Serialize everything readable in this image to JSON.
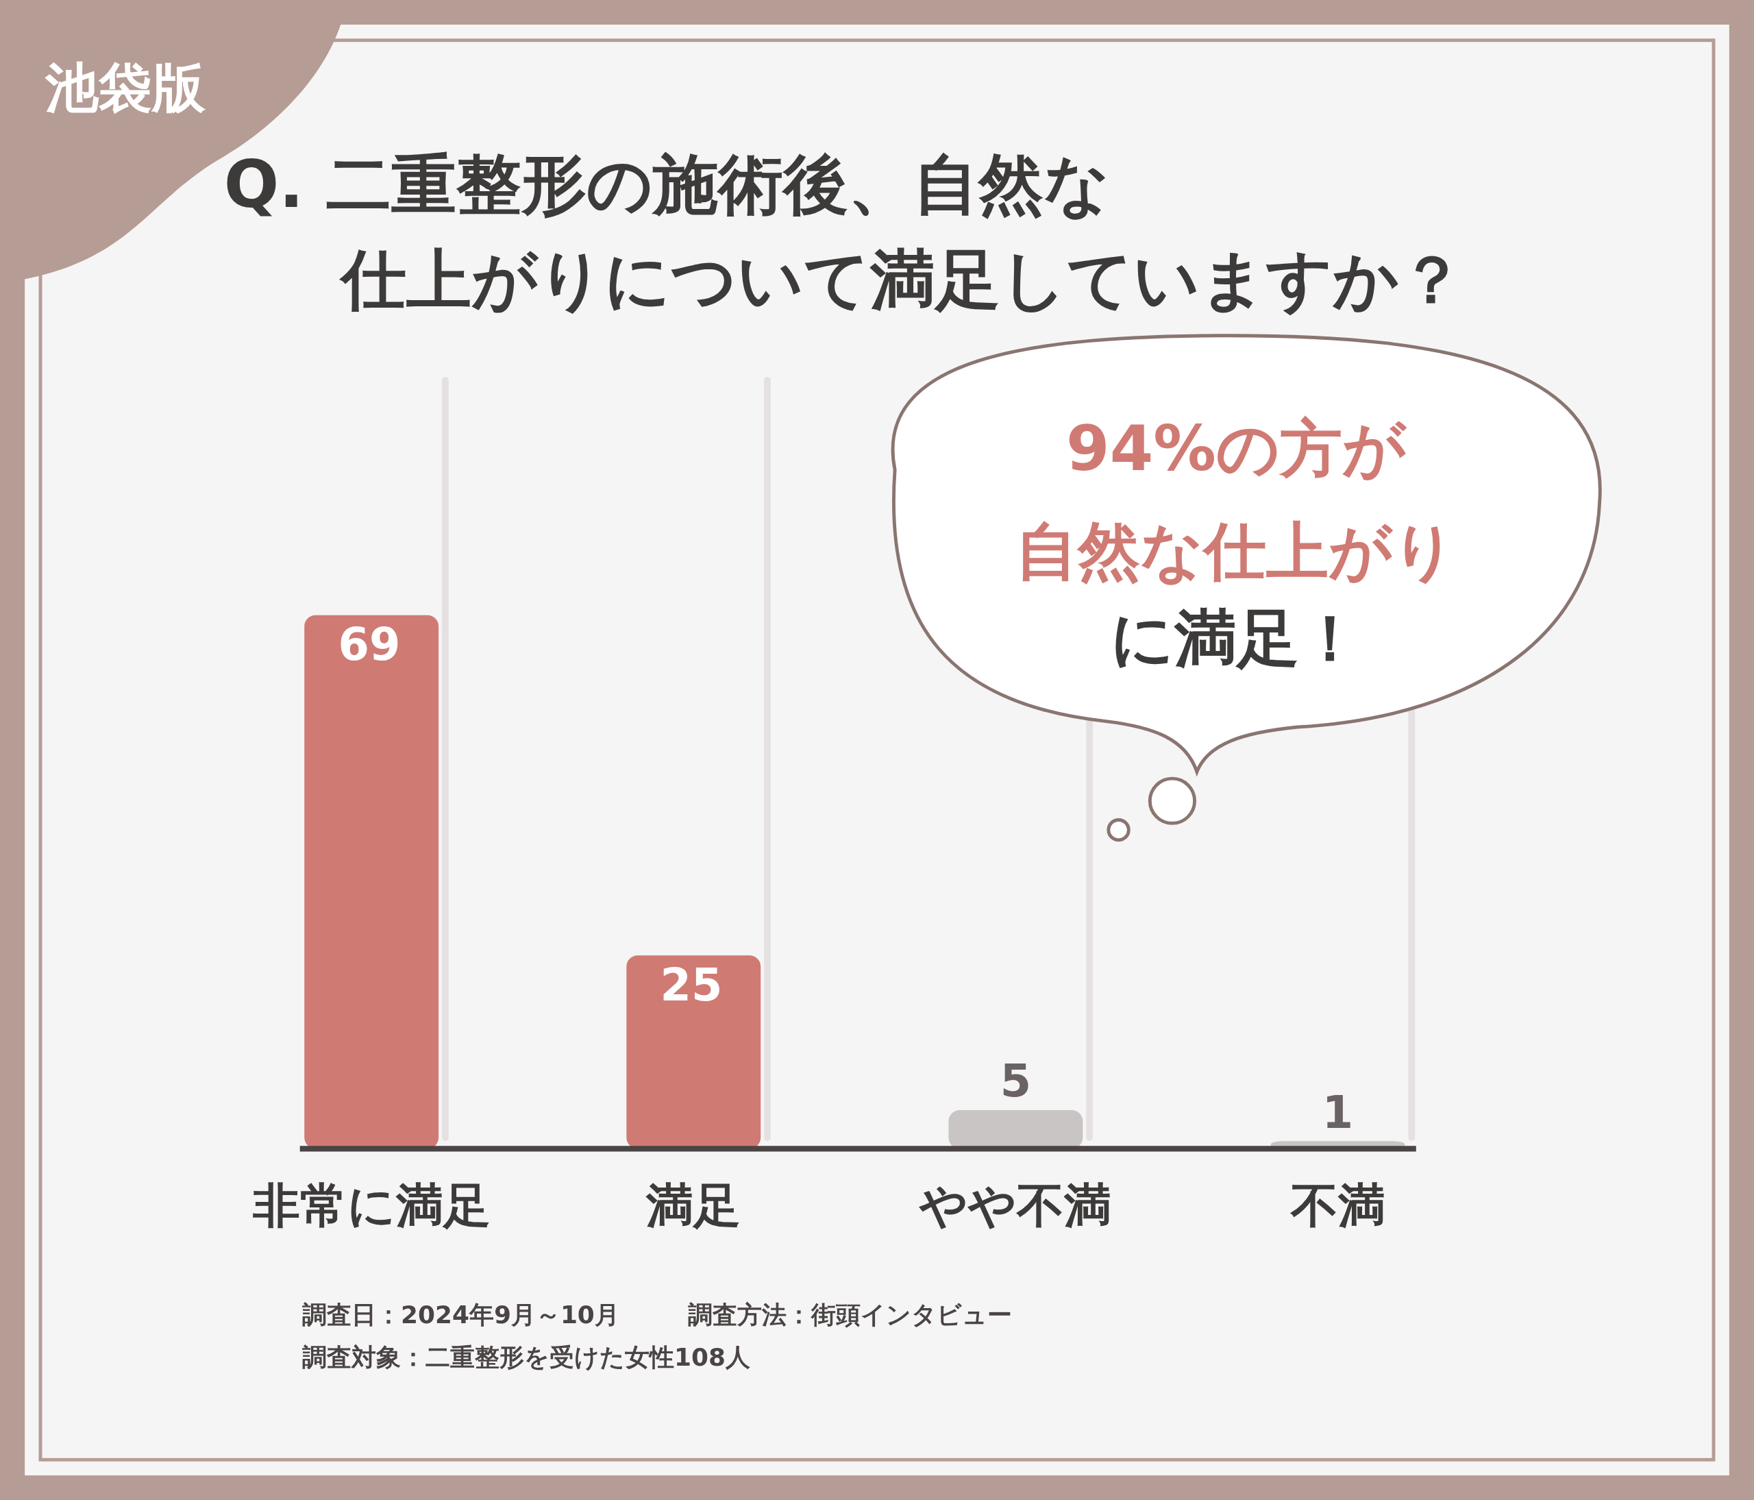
{
  "chart_data": {
    "type": "bar",
    "subtitle": "池袋版",
    "title": "Q. 二重整形の施術後、自然な仕上がりについて満足していますか？",
    "categories": [
      "非常に満足",
      "満足",
      "やや不満",
      "不満"
    ],
    "values": [
      69,
      25,
      5,
      1
    ],
    "colors": [
      "#d07a74",
      "#d07a74",
      "#c9c5c4",
      "#c9c5c4"
    ],
    "data_labels": true,
    "annotations": [
      "94%の方が",
      "自然な仕上がり",
      "に満足！",
      "調査日：2024年9月～10月",
      "調査方法：街頭インタビュー",
      "調査対象：二重整形を受けた女性108人"
    ]
  }
}
